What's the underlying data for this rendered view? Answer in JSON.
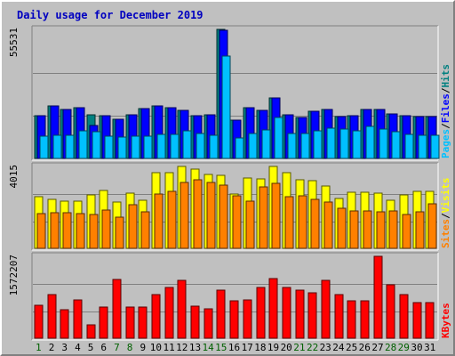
{
  "chart_data": {
    "type": "bar",
    "title": "Daily usage for December 2019",
    "categories": [
      "1",
      "2",
      "3",
      "4",
      "5",
      "6",
      "7",
      "8",
      "9",
      "10",
      "11",
      "12",
      "13",
      "14",
      "15",
      "16",
      "17",
      "18",
      "19",
      "20",
      "21",
      "22",
      "23",
      "24",
      "25",
      "26",
      "27",
      "28",
      "29",
      "30",
      "31"
    ],
    "weekend_days": [
      "1",
      "7",
      "8",
      "14",
      "15",
      "21",
      "22",
      "28",
      "29"
    ],
    "colors": {
      "hits": "#00c0ff",
      "files": "#0000ff",
      "pages": "#00c0ff",
      "sites": "#ff8000",
      "visits": "#ffff00",
      "kbytes": "#ff0000",
      "weekday_label": "#000000",
      "weekend_label": "#006000",
      "background": "#c0c0c0",
      "title": "#0000c0"
    },
    "panels": [
      {
        "id": "hits-panel",
        "max_label": "55531",
        "ylim": [
          0,
          55531
        ],
        "legend": [
          {
            "name": "Pages",
            "color": "#00c0ff"
          },
          {
            "name": "Files",
            "color": "#0000ff"
          },
          {
            "name": "Hits",
            "color": "#008080"
          }
        ],
        "series": [
          {
            "name": "Hits",
            "color": "#008080",
            "values": [
              18500,
              22500,
              21000,
              22000,
              18800,
              18200,
              17000,
              18800,
              21500,
              22500,
              21800,
              20800,
              18500,
              18700,
              55531,
              16600,
              21800,
              20800,
              26000,
              18900,
              17600,
              20400,
              20900,
              18100,
              18400,
              21200,
              21200,
              19000,
              18400,
              18100,
              18100
            ]
          },
          {
            "name": "Files",
            "color": "#0000ff",
            "values": [
              18500,
              22500,
              21000,
              22000,
              14000,
              18200,
              17000,
              18800,
              21500,
              22500,
              21800,
              20800,
              18500,
              18700,
              55000,
              16600,
              21800,
              20800,
              26000,
              18900,
              17600,
              20400,
              20900,
              18100,
              18400,
              21200,
              21200,
              19000,
              18400,
              18100,
              18100
            ]
          },
          {
            "name": "Pages",
            "color": "#00c0ff",
            "values": [
              9500,
              9900,
              10000,
              11900,
              11600,
              9400,
              9300,
              9600,
              9700,
              10300,
              10300,
              11900,
              10800,
              9900,
              44000,
              8900,
              10700,
              12300,
              17500,
              10600,
              10600,
              11700,
              13000,
              12800,
              11800,
              13600,
              12800,
              11300,
              10400,
              9800,
              9800
            ]
          }
        ]
      },
      {
        "id": "visits-panel",
        "max_label": "4015",
        "ylim": [
          0,
          4015
        ],
        "legend": [
          {
            "name": "Sites",
            "color": "#ff8000"
          },
          {
            "name": "Visits",
            "color": "#ffff00"
          }
        ],
        "series": [
          {
            "name": "Visits",
            "color": "#ffff00",
            "values": [
              2530,
              2400,
              2320,
              2320,
              2620,
              2830,
              2290,
              2720,
              2350,
              3720,
              3720,
              4015,
              3900,
              3620,
              3570,
              2670,
              3430,
              3420,
              4015,
              3720,
              3370,
              3320,
              3070,
              2450,
              2770,
              2740,
              2700,
              2340,
              2640,
              2800,
              2790
            ]
          },
          {
            "name": "Sites",
            "color": "#ff8000",
            "values": [
              1720,
              1760,
              1740,
              1700,
              1650,
              1880,
              1520,
              2120,
              1770,
              2650,
              2800,
              3250,
              3380,
              3240,
              3080,
              2580,
              2320,
              3000,
              3180,
              2520,
              2590,
              2380,
              2290,
              1950,
              1840,
              1840,
              1810,
              1840,
              1650,
              1770,
              2180
            ]
          }
        ]
      },
      {
        "id": "kbytes-panel",
        "max_label": "1572207",
        "ylim": [
          0,
          1572207
        ],
        "legend": [
          {
            "name": "KBytes",
            "color": "#ff0000"
          }
        ],
        "series": [
          {
            "name": "KBytes",
            "color": "#ff0000",
            "values": [
              640000,
              830000,
              540000,
              730000,
              250000,
              590000,
              1130000,
              590000,
              600000,
              830000,
              970000,
              1110000,
              620000,
              560000,
              920000,
              710000,
              730000,
              980000,
              1140000,
              970000,
              930000,
              880000,
              1110000,
              830000,
              710000,
              710000,
              1572207,
              1030000,
              830000,
              690000,
              680000
            ]
          }
        ]
      }
    ]
  }
}
